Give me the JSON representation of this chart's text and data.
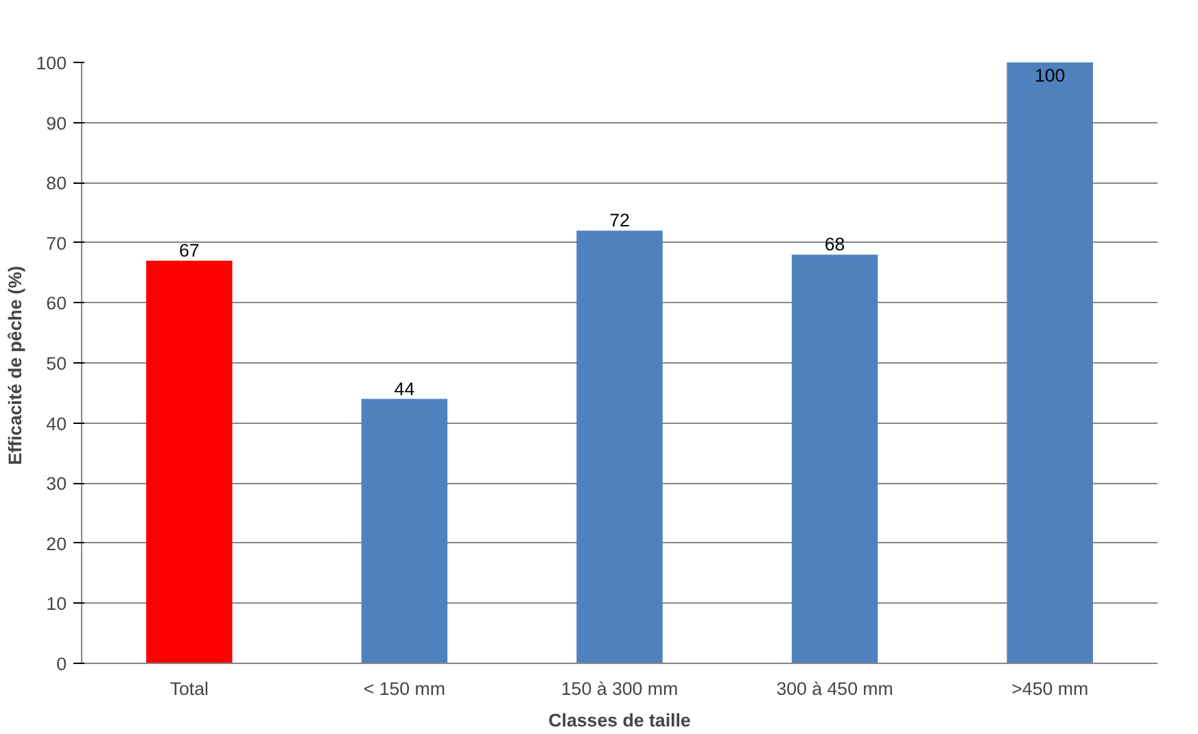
{
  "chart_data": {
    "type": "bar",
    "categories": [
      "Total",
      "< 150 mm",
      "150 à 300 mm",
      "300 à 450 mm",
      ">450 mm"
    ],
    "values": [
      67,
      44,
      72,
      68,
      100
    ],
    "colors": [
      "#ff0000",
      "#4f81bd",
      "#4f81bd",
      "#4f81bd",
      "#4f81bd"
    ],
    "xlabel": "Classes de taille",
    "ylabel": "Efficacité  de pêche (%)",
    "ylim": [
      0,
      100
    ],
    "yticks": [
      0,
      10,
      20,
      30,
      40,
      50,
      60,
      70,
      80,
      90,
      100
    ],
    "grid": "y",
    "data_labels": true
  }
}
